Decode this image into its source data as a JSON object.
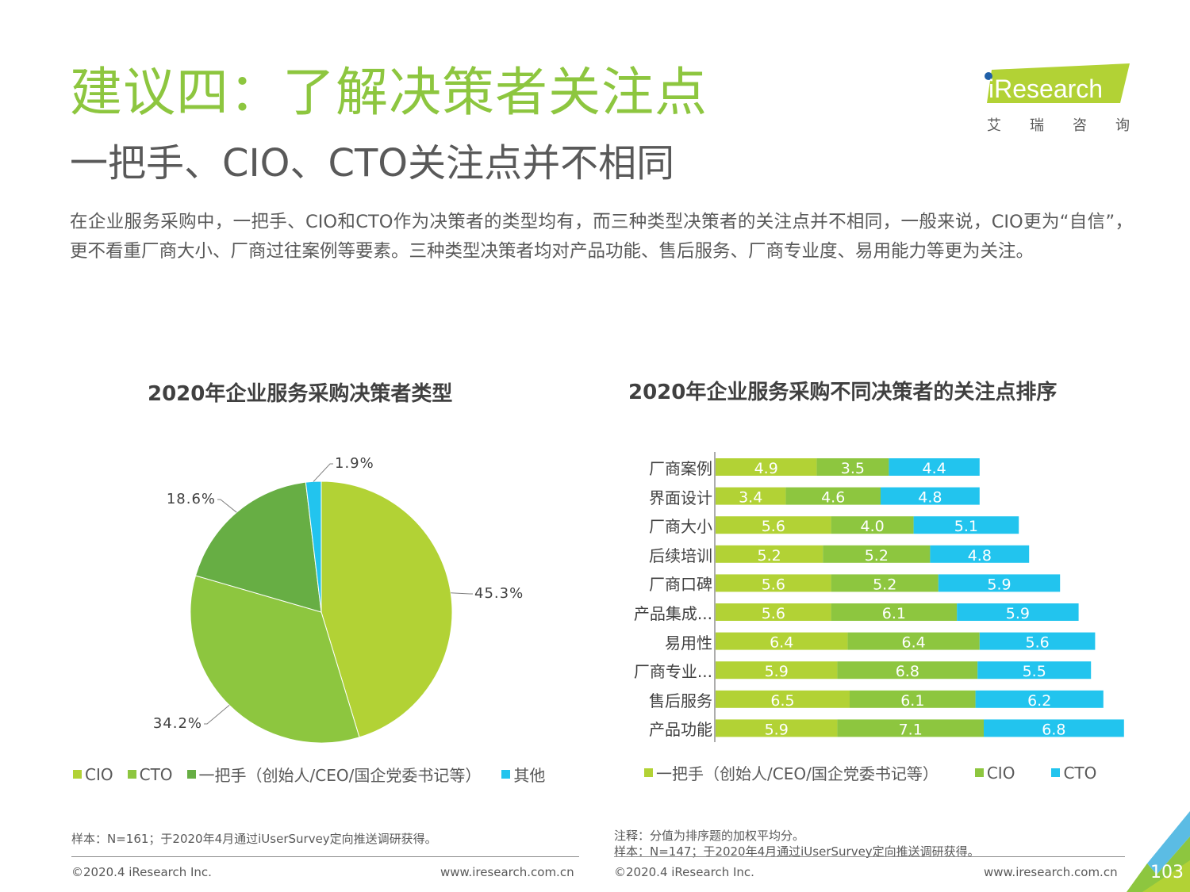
{
  "header": {
    "title": "建议四：了解决策者关注点",
    "subtitle": "一把手、CIO、CTO关注点并不相同",
    "intro": "在企业服务采购中，一把手、CIO和CTO作为决策者的类型均有，而三种类型决策者的关注点并不相同，一般来说，CIO更为“自信”，更不看重厂商大小、厂商过往案例等要素。三种类型决策者均对产品功能、售后服务、厂商专业度、易用能力等更为关注。"
  },
  "logo": {
    "brand": "iResearch",
    "chars": [
      "艾",
      "瑞",
      "咨",
      "询"
    ],
    "brand_color": "#b2d235",
    "dot_color": "#1f5fa8"
  },
  "colors": {
    "title_green": "#8dc63f",
    "lime": "#b2d235",
    "green": "#8dc63f",
    "dark_green": "#67ae44",
    "blue": "#22c4ee"
  },
  "chart_data": [
    {
      "type": "pie",
      "title": "2020年企业服务采购决策者类型",
      "slices": [
        {
          "name": "CIO",
          "value": 45.3,
          "label": "45.3%",
          "color": "#b2d235"
        },
        {
          "name": "CTO",
          "value": 34.2,
          "label": "34.2%",
          "color": "#8dc63f"
        },
        {
          "name": "一把手（创始人/CEO/国企党委书记等）",
          "value": 18.6,
          "label": "18.6%",
          "color": "#67ae44"
        },
        {
          "name": "其他",
          "value": 1.9,
          "label": "1.9%",
          "color": "#22c4ee"
        }
      ],
      "legend": [
        "CIO",
        "CTO",
        "一把手（创始人/CEO/国企党委书记等）",
        "其他"
      ],
      "legend_position": "bottom",
      "start": "top, clockwise"
    },
    {
      "type": "bar",
      "orientation": "horizontal-stacked",
      "title": "2020年企业服务采购不同决策者的关注点排序",
      "categories": [
        "厂商案例",
        "界面设计",
        "厂商大小",
        "后续培训",
        "厂商口碑",
        "产品集成...",
        "易用性",
        "厂商专业...",
        "售后服务",
        "产品功能"
      ],
      "series": [
        {
          "name": "一把手（创始人/CEO/国企党委书记等）",
          "color": "#b2d235",
          "values": [
            4.9,
            3.4,
            5.6,
            5.2,
            5.6,
            5.6,
            6.4,
            5.9,
            6.5,
            5.9
          ]
        },
        {
          "name": "CIO",
          "color": "#8dc63f",
          "values": [
            3.5,
            4.6,
            4.0,
            5.2,
            5.2,
            6.1,
            6.4,
            6.8,
            6.1,
            7.1
          ]
        },
        {
          "name": "CTO",
          "color": "#22c4ee",
          "values": [
            4.4,
            4.8,
            5.1,
            4.8,
            5.9,
            5.9,
            5.6,
            5.5,
            6.2,
            6.8
          ]
        }
      ],
      "legend": [
        "一把手（创始人/CEO/国企党委书记等）",
        "CIO",
        "CTO"
      ],
      "legend_position": "bottom",
      "data_labels": true,
      "grid": false
    }
  ],
  "notes": {
    "left_sample": "样本：N=161；于2020年4月通过iUserSurvey定向推送调研获得。",
    "right_note": "注释：分值为排序题的加权平均分。",
    "right_sample": "样本：N=147；于2020年4月通过iUserSurvey定向推送调研获得。"
  },
  "footer": {
    "copyright": "©2020.4 iResearch Inc.",
    "url": "www.iresearch.com.cn",
    "page_number": "103"
  }
}
